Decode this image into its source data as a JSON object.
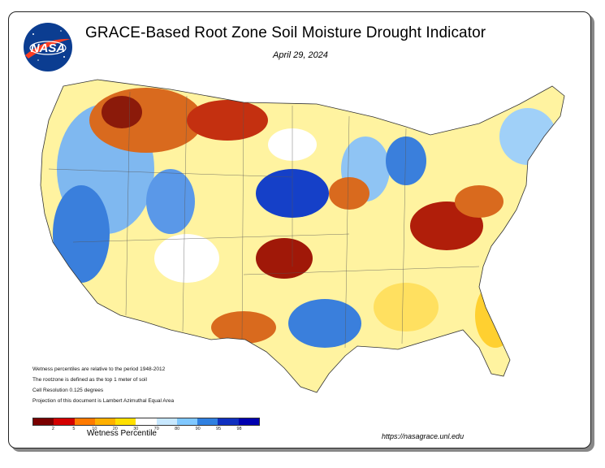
{
  "header": {
    "title": "GRACE-Based Root Zone Soil  Moisture Drought Indicator",
    "date": "April 29, 2024",
    "logo_text": "NASA"
  },
  "notes": [
    "Wetness percentiles are relative to the period 1948-2012",
    "The rootzone is defined as the top 1 meter of soil",
    "Cell Resolution 0.125 degrees",
    "Projection of this document is Lambert Azimuthal Equal Area"
  ],
  "legend": {
    "label": "Wetness Percentile",
    "ticks": [
      "2",
      "5",
      "10",
      "20",
      "30",
      "70",
      "80",
      "90",
      "95",
      "98"
    ],
    "colors": [
      "#7a0000",
      "#d40000",
      "#ff7a00",
      "#ffb000",
      "#ffe000",
      "#ffffff",
      "#c8e8ff",
      "#80c8ff",
      "#3080e0",
      "#1030c0",
      "#0000b0"
    ]
  },
  "footer": {
    "url": "https://nasagrace.unl.edu"
  }
}
